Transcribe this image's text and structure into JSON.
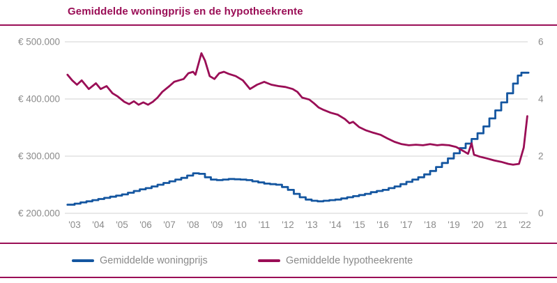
{
  "title": "Gemiddelde woningprijs en de hypotheekrente",
  "colors": {
    "accent": "#9A0E56",
    "price_line": "#1456A0",
    "rate_line": "#9A0E56",
    "axis_text": "#8a8a8a",
    "gridline": "#d0d0d0",
    "background": "#ffffff"
  },
  "legend": [
    {
      "label": "Gemiddelde woningprijs",
      "color": "#1456A0"
    },
    {
      "label": "Gemiddelde hypotheekrente",
      "color": "#9A0E56"
    }
  ],
  "chart_data": {
    "type": "line",
    "title": "Gemiddelde woningprijs en de hypotheekrente",
    "grid": true,
    "legend_position": "bottom",
    "x_range": [
      2003,
      2022.75
    ],
    "x_ticks": [
      {
        "year": 2003,
        "label": "'03"
      },
      {
        "year": 2004,
        "label": "'04"
      },
      {
        "year": 2005,
        "label": "'05"
      },
      {
        "year": 2006,
        "label": "'06"
      },
      {
        "year": 2007,
        "label": "'07"
      },
      {
        "year": 2008,
        "label": "'08"
      },
      {
        "year": 2009,
        "label": "'09"
      },
      {
        "year": 2010,
        "label": "'10"
      },
      {
        "year": 2011,
        "label": "'11"
      },
      {
        "year": 2012,
        "label": "'12"
      },
      {
        "year": 2013,
        "label": "'13"
      },
      {
        "year": 2014,
        "label": "'14"
      },
      {
        "year": 2015,
        "label": "'15"
      },
      {
        "year": 2016,
        "label": "'16"
      },
      {
        "year": 2017,
        "label": "'17"
      },
      {
        "year": 2018,
        "label": "'18"
      },
      {
        "year": 2019,
        "label": "'19"
      },
      {
        "year": 2020,
        "label": "'20"
      },
      {
        "year": 2021,
        "label": "'21"
      },
      {
        "year": 2022,
        "label": "'22"
      }
    ],
    "left_axis": {
      "unit": "EUR",
      "range": [
        200000,
        500000
      ],
      "ticks": [
        {
          "value": 500000,
          "label": "€ 500.000"
        },
        {
          "value": 400000,
          "label": "€ 400.000"
        },
        {
          "value": 300000,
          "label": "€ 300.000"
        },
        {
          "value": 200000,
          "label": "€ 200.000"
        }
      ]
    },
    "right_axis": {
      "unit": "%",
      "range": [
        0,
        6
      ],
      "ticks": [
        {
          "value": 6,
          "label": "6"
        },
        {
          "value": 4,
          "label": "4"
        },
        {
          "value": 2,
          "label": "2"
        },
        {
          "value": 0,
          "label": "0"
        }
      ]
    },
    "series": [
      {
        "name": "Gemiddelde woningprijs",
        "axis": "left",
        "color": "#1456A0",
        "style": "step",
        "points": [
          [
            2003.2,
            215000
          ],
          [
            2003.5,
            217000
          ],
          [
            2003.75,
            219000
          ],
          [
            2004.0,
            221000
          ],
          [
            2004.25,
            223000
          ],
          [
            2004.5,
            225000
          ],
          [
            2004.75,
            227000
          ],
          [
            2005.0,
            229000
          ],
          [
            2005.25,
            231000
          ],
          [
            2005.5,
            233000
          ],
          [
            2005.75,
            236000
          ],
          [
            2006.0,
            239000
          ],
          [
            2006.25,
            242000
          ],
          [
            2006.5,
            244000
          ],
          [
            2006.75,
            247000
          ],
          [
            2007.0,
            250000
          ],
          [
            2007.25,
            253000
          ],
          [
            2007.5,
            256000
          ],
          [
            2007.75,
            259000
          ],
          [
            2008.0,
            262000
          ],
          [
            2008.25,
            266000
          ],
          [
            2008.5,
            270000
          ],
          [
            2008.75,
            269000
          ],
          [
            2009.0,
            263000
          ],
          [
            2009.25,
            259000
          ],
          [
            2009.5,
            258000
          ],
          [
            2009.75,
            259000
          ],
          [
            2010.0,
            260000
          ],
          [
            2010.25,
            259500
          ],
          [
            2010.5,
            259000
          ],
          [
            2010.75,
            258000
          ],
          [
            2011.0,
            256000
          ],
          [
            2011.25,
            254000
          ],
          [
            2011.5,
            252000
          ],
          [
            2011.75,
            251000
          ],
          [
            2012.0,
            250000
          ],
          [
            2012.25,
            246000
          ],
          [
            2012.5,
            241000
          ],
          [
            2012.75,
            234000
          ],
          [
            2013.0,
            228000
          ],
          [
            2013.25,
            224000
          ],
          [
            2013.5,
            222000
          ],
          [
            2013.75,
            221000
          ],
          [
            2014.0,
            222000
          ],
          [
            2014.25,
            223000
          ],
          [
            2014.5,
            224000
          ],
          [
            2014.75,
            226000
          ],
          [
            2015.0,
            228000
          ],
          [
            2015.25,
            230000
          ],
          [
            2015.5,
            232000
          ],
          [
            2015.75,
            234000
          ],
          [
            2016.0,
            237000
          ],
          [
            2016.25,
            239000
          ],
          [
            2016.5,
            241000
          ],
          [
            2016.75,
            244000
          ],
          [
            2017.0,
            247000
          ],
          [
            2017.25,
            251000
          ],
          [
            2017.5,
            255000
          ],
          [
            2017.75,
            259000
          ],
          [
            2018.0,
            263000
          ],
          [
            2018.25,
            268000
          ],
          [
            2018.5,
            274000
          ],
          [
            2018.75,
            281000
          ],
          [
            2019.0,
            288000
          ],
          [
            2019.25,
            296000
          ],
          [
            2019.5,
            305000
          ],
          [
            2019.75,
            314000
          ],
          [
            2020.0,
            322000
          ],
          [
            2020.25,
            330000
          ],
          [
            2020.5,
            340000
          ],
          [
            2020.75,
            352000
          ],
          [
            2021.0,
            366000
          ],
          [
            2021.25,
            380000
          ],
          [
            2021.5,
            394000
          ],
          [
            2021.75,
            410000
          ],
          [
            2022.0,
            427000
          ],
          [
            2022.2,
            441000
          ],
          [
            2022.35,
            446000
          ],
          [
            2022.65,
            446000
          ]
        ]
      },
      {
        "name": "Gemiddelde hypotheekrente",
        "axis": "right",
        "color": "#9A0E56",
        "style": "linear",
        "points": [
          [
            2003.2,
            4.85
          ],
          [
            2003.4,
            4.65
          ],
          [
            2003.6,
            4.5
          ],
          [
            2003.8,
            4.65
          ],
          [
            2004.1,
            4.35
          ],
          [
            2004.4,
            4.55
          ],
          [
            2004.6,
            4.35
          ],
          [
            2004.85,
            4.45
          ],
          [
            2005.1,
            4.2
          ],
          [
            2005.3,
            4.1
          ],
          [
            2005.6,
            3.9
          ],
          [
            2005.8,
            3.82
          ],
          [
            2006.0,
            3.92
          ],
          [
            2006.2,
            3.8
          ],
          [
            2006.4,
            3.88
          ],
          [
            2006.6,
            3.8
          ],
          [
            2006.8,
            3.9
          ],
          [
            2007.0,
            4.05
          ],
          [
            2007.2,
            4.25
          ],
          [
            2007.5,
            4.45
          ],
          [
            2007.7,
            4.6
          ],
          [
            2007.9,
            4.65
          ],
          [
            2008.1,
            4.7
          ],
          [
            2008.3,
            4.9
          ],
          [
            2008.5,
            4.95
          ],
          [
            2008.6,
            4.85
          ],
          [
            2008.75,
            5.3
          ],
          [
            2008.85,
            5.6
          ],
          [
            2009.0,
            5.35
          ],
          [
            2009.2,
            4.8
          ],
          [
            2009.4,
            4.7
          ],
          [
            2009.6,
            4.9
          ],
          [
            2009.8,
            4.95
          ],
          [
            2010.0,
            4.88
          ],
          [
            2010.3,
            4.8
          ],
          [
            2010.6,
            4.65
          ],
          [
            2010.9,
            4.35
          ],
          [
            2011.2,
            4.5
          ],
          [
            2011.5,
            4.6
          ],
          [
            2011.8,
            4.5
          ],
          [
            2012.1,
            4.45
          ],
          [
            2012.4,
            4.42
          ],
          [
            2012.7,
            4.35
          ],
          [
            2012.9,
            4.25
          ],
          [
            2013.1,
            4.05
          ],
          [
            2013.4,
            3.98
          ],
          [
            2013.6,
            3.85
          ],
          [
            2013.8,
            3.7
          ],
          [
            2014.0,
            3.62
          ],
          [
            2014.3,
            3.52
          ],
          [
            2014.6,
            3.45
          ],
          [
            2014.9,
            3.3
          ],
          [
            2015.1,
            3.15
          ],
          [
            2015.25,
            3.2
          ],
          [
            2015.5,
            3.02
          ],
          [
            2015.8,
            2.9
          ],
          [
            2016.1,
            2.82
          ],
          [
            2016.4,
            2.75
          ],
          [
            2016.7,
            2.62
          ],
          [
            2017.0,
            2.5
          ],
          [
            2017.3,
            2.42
          ],
          [
            2017.6,
            2.38
          ],
          [
            2017.9,
            2.4
          ],
          [
            2018.2,
            2.38
          ],
          [
            2018.5,
            2.42
          ],
          [
            2018.8,
            2.38
          ],
          [
            2019.0,
            2.4
          ],
          [
            2019.3,
            2.38
          ],
          [
            2019.6,
            2.32
          ],
          [
            2019.9,
            2.18
          ],
          [
            2020.1,
            2.08
          ],
          [
            2020.25,
            2.45
          ],
          [
            2020.35,
            2.05
          ],
          [
            2020.6,
            1.98
          ],
          [
            2020.9,
            1.92
          ],
          [
            2021.2,
            1.85
          ],
          [
            2021.5,
            1.8
          ],
          [
            2021.8,
            1.73
          ],
          [
            2022.0,
            1.7
          ],
          [
            2022.25,
            1.73
          ],
          [
            2022.45,
            2.3
          ],
          [
            2022.6,
            3.4
          ]
        ]
      }
    ]
  }
}
